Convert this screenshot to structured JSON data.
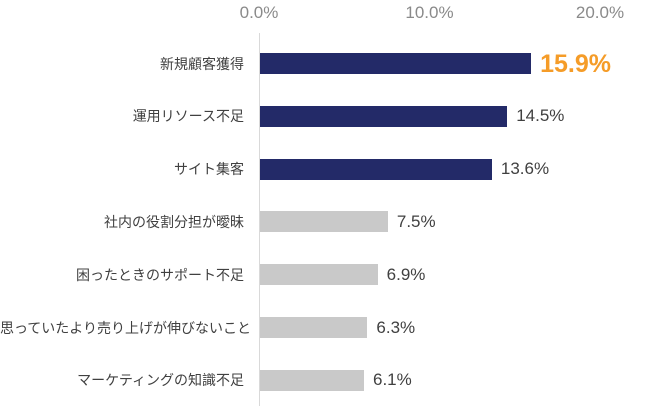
{
  "chart_data": {
    "type": "bar",
    "orientation": "horizontal",
    "title": "",
    "xlabel": "",
    "ylabel": "",
    "xlim": [
      0,
      20
    ],
    "x_ticks": [
      {
        "value": 0,
        "label": "0.0%"
      },
      {
        "value": 10,
        "label": "10.0%"
      },
      {
        "value": 20,
        "label": "20.0%"
      }
    ],
    "categories": [
      "新規顧客獲得",
      "運用リソース不足",
      "サイト集客",
      "社内の役割分担が曖昧",
      "困ったときのサポート不足",
      "思っていたより売り上げが伸びないこと",
      "マーケティングの知識不足"
    ],
    "values": [
      15.9,
      14.5,
      13.6,
      7.5,
      6.9,
      6.3,
      6.1
    ],
    "value_labels": [
      "15.9%",
      "14.5%",
      "13.6%",
      "7.5%",
      "6.9%",
      "6.3%",
      "6.1%"
    ],
    "highlight_index": 0,
    "grid": "single vertical baseline at 0 only",
    "legend": "none",
    "colors": {
      "bar_navy": "#232a68",
      "bar_gray": "#c9c9c9",
      "value_text": "#404040",
      "highlight_value_text": "#f59c28",
      "category_text": "#404040",
      "axis_text": "#8a8a8a",
      "baseline": "#d9d9d9",
      "background": "#ffffff"
    },
    "bar_colors": [
      "#232a68",
      "#232a68",
      "#232a68",
      "#c9c9c9",
      "#c9c9c9",
      "#c9c9c9",
      "#c9c9c9"
    ]
  }
}
